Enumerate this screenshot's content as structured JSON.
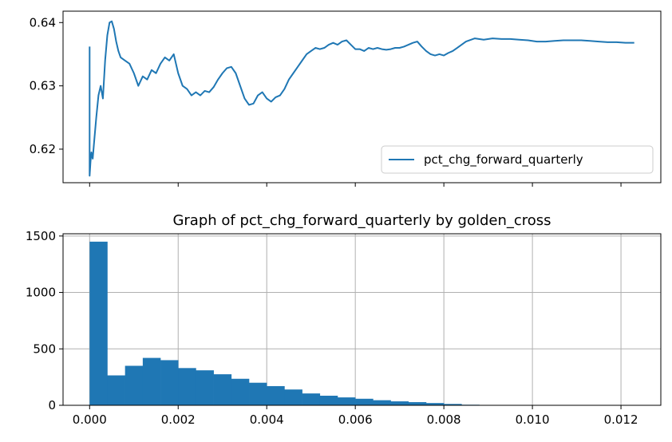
{
  "chart_data": [
    {
      "type": "line",
      "title": "",
      "xlabel": "",
      "ylabel": "",
      "xlim": [
        -0.0006,
        0.0129
      ],
      "ylim": [
        0.6147,
        0.6418
      ],
      "x_ticks": [
        0,
        0.002,
        0.004,
        0.006,
        0.008,
        0.01,
        0.012
      ],
      "x_tick_labels_visible": false,
      "y_ticks": [
        0.62,
        0.63,
        0.64
      ],
      "y_tick_labels": [
        "0.62",
        "0.63",
        "0.64"
      ],
      "grid": false,
      "legend": {
        "placement": "lower-right",
        "entries": [
          "pct_chg_forward_quarterly"
        ]
      },
      "series": [
        {
          "name": "pct_chg_forward_quarterly",
          "color": "#1f77b4",
          "x": [
            0,
            0,
            2e-05,
            4e-05,
            7e-05,
            0.0001,
            0.00015,
            0.0002,
            0.00025,
            0.0003,
            0.00035,
            0.0004,
            0.00045,
            0.0005,
            0.00055,
            0.0006,
            0.00065,
            0.0007,
            0.0008,
            0.0009,
            0.001,
            0.0011,
            0.0012,
            0.0013,
            0.0014,
            0.0015,
            0.0016,
            0.0017,
            0.0018,
            0.0019,
            0.002,
            0.0021,
            0.0022,
            0.0023,
            0.0024,
            0.0025,
            0.0026,
            0.0027,
            0.0028,
            0.0029,
            0.003,
            0.0031,
            0.0032,
            0.0033,
            0.0034,
            0.0035,
            0.0036,
            0.0037,
            0.0038,
            0.0039,
            0.004,
            0.0041,
            0.0042,
            0.0043,
            0.0044,
            0.0045,
            0.0046,
            0.0047,
            0.0048,
            0.0049,
            0.005,
            0.0051,
            0.0052,
            0.0053,
            0.0054,
            0.0055,
            0.0056,
            0.0057,
            0.0058,
            0.0059,
            0.006,
            0.0061,
            0.0062,
            0.0063,
            0.0064,
            0.0065,
            0.0066,
            0.0067,
            0.0068,
            0.0069,
            0.007,
            0.0071,
            0.0072,
            0.0073,
            0.0074,
            0.0075,
            0.0076,
            0.0077,
            0.0078,
            0.0079,
            0.008,
            0.0081,
            0.0082,
            0.0083,
            0.0084,
            0.0085,
            0.0087,
            0.0089,
            0.0091,
            0.0093,
            0.0095,
            0.0097,
            0.0099,
            0.0101,
            0.0103,
            0.0105,
            0.0107,
            0.0109,
            0.0111,
            0.0113,
            0.0115,
            0.0117,
            0.0119,
            0.0121,
            0.0123
          ],
          "y": [
            0.6362,
            0.6158,
            0.618,
            0.6195,
            0.6185,
            0.621,
            0.625,
            0.6285,
            0.63,
            0.628,
            0.634,
            0.638,
            0.64,
            0.6402,
            0.639,
            0.637,
            0.6355,
            0.6345,
            0.634,
            0.6335,
            0.632,
            0.63,
            0.6315,
            0.631,
            0.6325,
            0.632,
            0.6335,
            0.6345,
            0.634,
            0.635,
            0.632,
            0.63,
            0.6295,
            0.6285,
            0.629,
            0.6285,
            0.6292,
            0.629,
            0.6298,
            0.631,
            0.632,
            0.6328,
            0.633,
            0.632,
            0.63,
            0.628,
            0.627,
            0.6272,
            0.6285,
            0.629,
            0.628,
            0.6275,
            0.6282,
            0.6285,
            0.6295,
            0.631,
            0.632,
            0.633,
            0.634,
            0.635,
            0.6355,
            0.636,
            0.6358,
            0.636,
            0.6365,
            0.6368,
            0.6365,
            0.637,
            0.6372,
            0.6365,
            0.6358,
            0.6358,
            0.6355,
            0.636,
            0.6358,
            0.636,
            0.6358,
            0.6357,
            0.6358,
            0.636,
            0.636,
            0.6362,
            0.6365,
            0.6368,
            0.637,
            0.6362,
            0.6355,
            0.635,
            0.6348,
            0.635,
            0.6348,
            0.6352,
            0.6355,
            0.636,
            0.6365,
            0.637,
            0.6375,
            0.6373,
            0.6375,
            0.6374,
            0.6374,
            0.6373,
            0.6372,
            0.637,
            0.637,
            0.6371,
            0.6372,
            0.6372,
            0.6372,
            0.6371,
            0.637,
            0.6369,
            0.6369,
            0.6368,
            0.6368
          ]
        }
      ]
    },
    {
      "type": "bar",
      "title": "Graph of pct_chg_forward_quarterly by golden_cross",
      "xlabel": "",
      "ylabel": "",
      "xlim": [
        -0.0006,
        0.0129
      ],
      "ylim": [
        0,
        1520
      ],
      "x_ticks": [
        0,
        0.002,
        0.004,
        0.006,
        0.008,
        0.01,
        0.012
      ],
      "x_tick_labels": [
        "0.000",
        "0.002",
        "0.004",
        "0.006",
        "0.008",
        "0.010",
        "0.012"
      ],
      "y_ticks": [
        0,
        500,
        1000,
        1500
      ],
      "y_tick_labels": [
        "0",
        "500",
        "1000",
        "1500"
      ],
      "grid": true,
      "color": "#1f77b4",
      "bin_width": 0.0004,
      "bin_starts": [
        0,
        0.0004,
        0.0008,
        0.0012,
        0.0016,
        0.002,
        0.0024,
        0.0028,
        0.0032,
        0.0036,
        0.004,
        0.0044,
        0.0048,
        0.0052,
        0.0056,
        0.006,
        0.0064,
        0.0068,
        0.0072,
        0.0076,
        0.008,
        0.0084
      ],
      "values": [
        1450,
        265,
        350,
        420,
        400,
        330,
        310,
        275,
        235,
        200,
        170,
        140,
        105,
        85,
        70,
        58,
        45,
        35,
        28,
        20,
        12,
        5
      ]
    }
  ]
}
